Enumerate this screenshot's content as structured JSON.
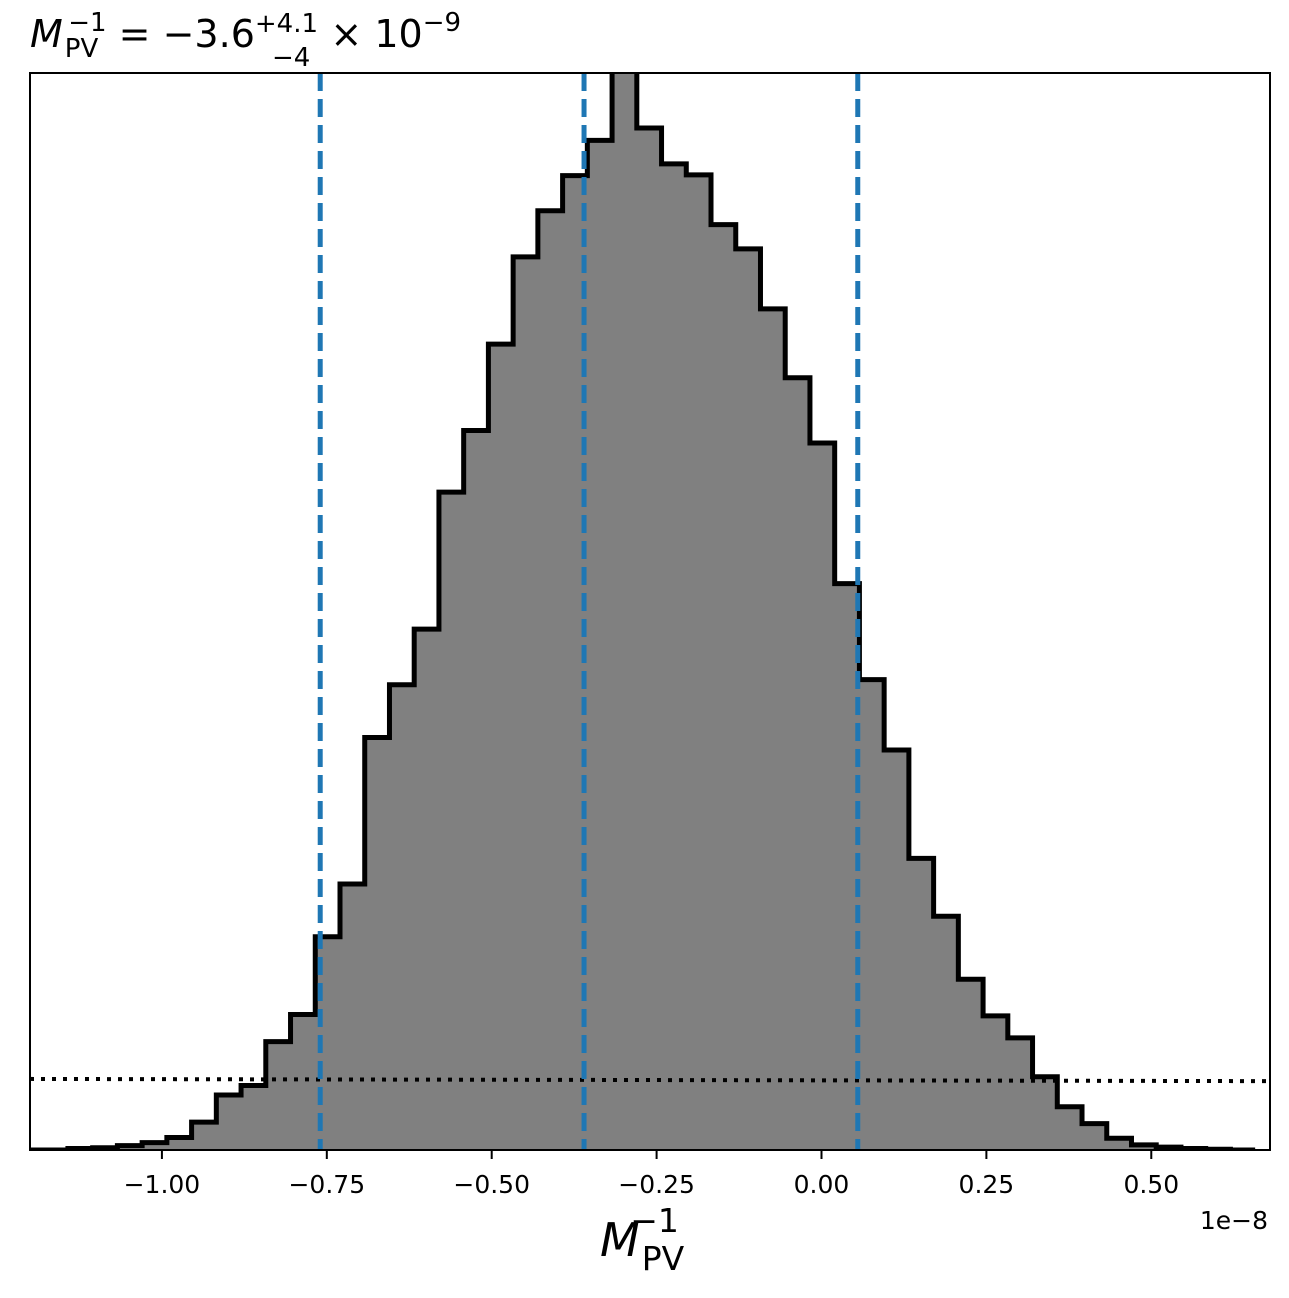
{
  "chart_data": {
    "type": "histogram",
    "title": {
      "base": "M",
      "base_sub": "PV",
      "base_sup": "−1",
      "equals": " = −3.6",
      "err_plus": "+4.1",
      "err_minus": "−4",
      "times": " × 10",
      "exp": "−9"
    },
    "xlabel": {
      "base": "M",
      "sub": "PV",
      "sup": "−1"
    },
    "x_multiplier_label": "1e−8",
    "x_unit_scale": 1e-08,
    "xlim": [
      -1.2,
      0.68
    ],
    "ylim": [
      0,
      1.05
    ],
    "y_ticks_visible": false,
    "x_ticks": [
      {
        "value": -1.0,
        "label": "−1.00"
      },
      {
        "value": -0.75,
        "label": "−0.75"
      },
      {
        "value": -0.5,
        "label": "−0.50"
      },
      {
        "value": -0.25,
        "label": "−0.25"
      },
      {
        "value": 0.0,
        "label": "0.00"
      },
      {
        "value": 0.25,
        "label": "0.25"
      },
      {
        "value": 0.5,
        "label": "0.50"
      }
    ],
    "bin_start": -1.255,
    "bin_width": 0.0375,
    "bin_heights": [
      0.0,
      0.0,
      0.0,
      0.002,
      0.003,
      0.006,
      0.01,
      0.017,
      0.038,
      0.075,
      0.088,
      0.148,
      0.185,
      0.291,
      0.363,
      0.563,
      0.635,
      0.711,
      0.898,
      0.982,
      1.1,
      1.219,
      1.282,
      1.33,
      1.378,
      1.475,
      1.395,
      1.346,
      1.331,
      1.263,
      1.23,
      1.148,
      1.054,
      0.965,
      0.773,
      0.642,
      0.546,
      0.398,
      0.319,
      0.233,
      0.183,
      0.153,
      0.1,
      0.059,
      0.036,
      0.016,
      0.007,
      0.004,
      0.002,
      0.001,
      0.0
    ],
    "vlines": [
      {
        "value": -0.76,
        "style": "dashed",
        "meaning": "lower"
      },
      {
        "value": -0.36,
        "style": "dashed",
        "meaning": "median"
      },
      {
        "value": 0.055,
        "style": "dashed",
        "meaning": "upper"
      }
    ],
    "reference_line": {
      "y_start": 0.097,
      "y_end": 0.094,
      "style": "dotted"
    },
    "colors": {
      "fill": "#808080",
      "edge": "#000000",
      "vline": "#1f77b4",
      "reference": "#000000"
    }
  }
}
